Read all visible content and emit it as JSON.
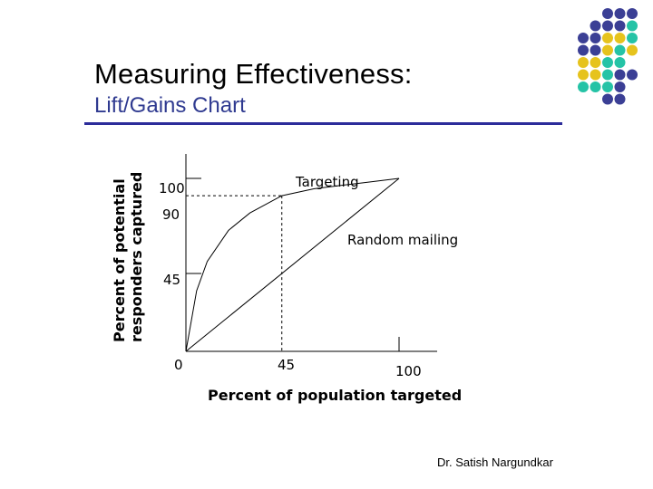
{
  "slide": {
    "title": "Measuring Effectiveness:",
    "subtitle": "Lift/Gains Chart",
    "footer": "Dr. Satish Nargundkar"
  },
  "colors": {
    "accent_blue": "#2c2c9a",
    "dot_purple": "#3b3f95",
    "dot_yellow": "#e6c31d",
    "dot_teal": "#25c3a6"
  },
  "dot_grid": [
    "..PPP",
    ".PPPT",
    "PPYYT",
    "PPYTY",
    "YYTT.",
    "YYTPP",
    "TTTP.",
    "..PP."
  ],
  "chart_data": {
    "type": "line",
    "xlabel": "Percent of population targeted",
    "ylabel": "Percent of potential responders captured",
    "xlim": [
      0,
      100
    ],
    "ylim": [
      0,
      100
    ],
    "x_ticks": [
      "0",
      "45",
      "100"
    ],
    "y_ticks": [
      "100",
      "90",
      "45"
    ],
    "series": [
      {
        "name": "Targeting",
        "x": [
          0,
          5,
          10,
          20,
          30,
          45,
          60,
          80,
          100
        ],
        "y": [
          0,
          35,
          52,
          70,
          80,
          90,
          94,
          97,
          100
        ]
      },
      {
        "name": "Random mailing",
        "x": [
          0,
          100
        ],
        "y": [
          0,
          100
        ]
      }
    ],
    "guides": [
      {
        "x": 45,
        "y": 90
      }
    ]
  }
}
